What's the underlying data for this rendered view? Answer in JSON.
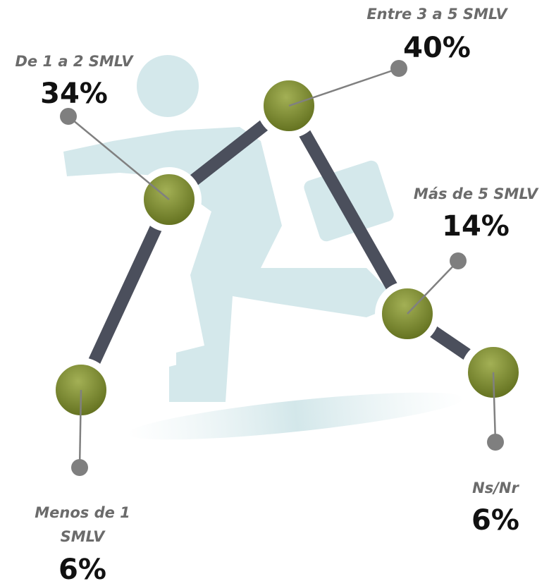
{
  "nodes": [
    {
      "label": "Menos de 1 SMLV",
      "value": "6%"
    },
    {
      "label": "De 1 a 2 SMLV",
      "value": "34%"
    },
    {
      "label": "Entre 3 a 5 SMLV",
      "value": "40%"
    },
    {
      "label": "Más de 5 SMLV",
      "value": "14%"
    },
    {
      "label": "Ns/Nr",
      "value": "6%"
    }
  ]
}
